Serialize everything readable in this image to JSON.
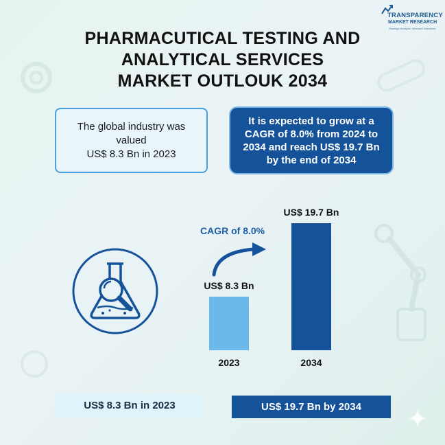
{
  "logo": {
    "line1": "TRANSPARENCY",
    "line2": "MARKET RESEARCH",
    "line3": "Strategic Analysis. Informed Decisions."
  },
  "title": {
    "line1": "PHARMACUTICAL TESTING AND",
    "line2": "ANALYTICAL SERVICES",
    "line3": "MARKET OUTLOUK 2034"
  },
  "summary": {
    "left_line1": "The global industry was valued",
    "left_line2": "US$ 8.3 Bn in 2023",
    "right_line1": "It is expected to grow at a",
    "right_line2": "CAGR of 8.0% from 2024 to",
    "right_line3": "2034 and reach US$ 19.7 Bn",
    "right_line4": "by the end of 2034"
  },
  "chart_data": {
    "type": "bar",
    "categories": [
      "2023",
      "2034"
    ],
    "values": [
      8.3,
      19.7
    ],
    "data_labels": [
      "US$ 8.3 Bn",
      "US$ 19.7 Bn"
    ],
    "annotation": "CAGR of 8.0%",
    "bar_colors": [
      "#6db8ea",
      "#14529a"
    ],
    "title": "",
    "xlabel": "",
    "ylabel": "",
    "ylim": [
      0,
      19.7
    ],
    "grid": false,
    "legend": "none"
  },
  "footer": {
    "left": "US$ 8.3 Bn in 2023",
    "right": "US$ 19.7 Bn by 2034"
  },
  "colors": {
    "primary": "#14529a",
    "light_bar": "#6db8ea",
    "accent_blue": "#1c5ea5",
    "box_border": "#4aa0dc"
  },
  "icons": [
    "lab-flask-magnifier-icon",
    "sparkle-icon",
    "transparency-logo-icon"
  ]
}
